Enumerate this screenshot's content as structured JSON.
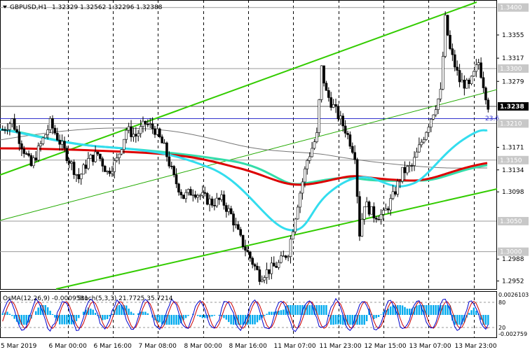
{
  "main": {
    "symbol": "GBPUSD,H1",
    "ohlc": "1.32329 1.32562 1.32296 1.32388",
    "fib_label": "23.6"
  },
  "osc": {
    "osma": "OsMA(12,26,9) -0.0009581",
    "stoch": "Stoch(5,3,3) 21.7725 35.7214",
    "levels": [
      "0.0026103",
      "80",
      "20",
      "-0.002759"
    ],
    "level_values": [
      80,
      20
    ]
  },
  "price_axis": {
    "plain": [
      "1.3355",
      "1.3317",
      "1.3279",
      "1.3171",
      "1.3134",
      "1.3098",
      "1.2988",
      "1.2952"
    ],
    "highlighted": [
      "1.3400",
      "1.3300",
      "1.3210",
      "1.3150",
      "1.3050",
      "1.3000"
    ],
    "current": "1.3238"
  },
  "time_axis": [
    "5 Mar 2019",
    "6 Mar 00:00",
    "6 Mar 16:00",
    "7 Mar 08:00",
    "8 Mar 00:00",
    "8 Mar 16:00",
    "11 Mar 07:00",
    "11 Mar 23:00",
    "12 Mar 15:00",
    "13 Mar 07:00",
    "13 Mar 23:00"
  ],
  "colors": {
    "bull_candle": "#ffffff",
    "bear_candle": "#000000",
    "channel": "#33cc00",
    "ma_red": "#dd0000",
    "ma_cyan": "#33ddee",
    "ma_teal": "#33ddaa",
    "ma_gray": "#777777",
    "osma_bars": "#00aaee",
    "stoch_main": "#0000cc",
    "stoch_signal": "#cc0000"
  },
  "chart_data": {
    "type": "candlestick",
    "symbol": "GBPUSD",
    "timeframe": "H1",
    "ohlc_last": [
      1.32329,
      1.32562,
      1.32296,
      1.32388
    ],
    "ylim": [
      1.294,
      1.341
    ],
    "key_levels": [
      1.34,
      1.33,
      1.321,
      1.315,
      1.305,
      1.3
    ],
    "close_path": [
      [
        0,
        1.32
      ],
      [
        4,
        1.3215
      ],
      [
        8,
        1.3175
      ],
      [
        12,
        1.314
      ],
      [
        16,
        1.3175
      ],
      [
        20,
        1.321
      ],
      [
        24,
        1.318
      ],
      [
        28,
        1.315
      ],
      [
        32,
        1.312
      ],
      [
        36,
        1.315
      ],
      [
        40,
        1.316
      ],
      [
        44,
        1.313
      ],
      [
        48,
        1.315
      ],
      [
        52,
        1.32
      ],
      [
        56,
        1.319
      ],
      [
        60,
        1.321
      ],
      [
        64,
        1.32
      ],
      [
        68,
        1.317
      ],
      [
        72,
        1.312
      ],
      [
        76,
        1.309
      ],
      [
        80,
        1.31
      ],
      [
        84,
        1.309
      ],
      [
        88,
        1.308
      ],
      [
        92,
        1.3085
      ],
      [
        96,
        1.306
      ],
      [
        100,
        1.302
      ],
      [
        104,
        1.299
      ],
      [
        108,
        1.296
      ],
      [
        112,
        1.297
      ],
      [
        116,
        1.298
      ],
      [
        120,
        1.3
      ],
      [
        124,
        1.308
      ],
      [
        128,
        1.315
      ],
      [
        132,
        1.319
      ],
      [
        134,
        1.33
      ],
      [
        136,
        1.326
      ],
      [
        140,
        1.323
      ],
      [
        144,
        1.32
      ],
      [
        148,
        1.316
      ],
      [
        150,
        1.303
      ],
      [
        152,
        1.308
      ],
      [
        156,
        1.306
      ],
      [
        160,
        1.306
      ],
      [
        164,
        1.309
      ],
      [
        168,
        1.313
      ],
      [
        172,
        1.314
      ],
      [
        176,
        1.318
      ],
      [
        180,
        1.322
      ],
      [
        184,
        1.326
      ],
      [
        186,
        1.338
      ],
      [
        188,
        1.333
      ],
      [
        192,
        1.328
      ],
      [
        196,
        1.327
      ],
      [
        200,
        1.331
      ],
      [
        204,
        1.324
      ]
    ]
  }
}
